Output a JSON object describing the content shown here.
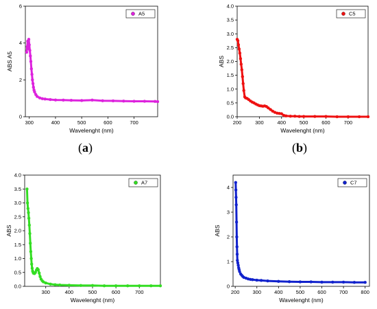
{
  "panel_labels": {
    "a": "(a)",
    "b": "(b)"
  },
  "chart_data": [
    {
      "type": "scatter",
      "panel": "a",
      "xlabel": "Wavelenght (nm)",
      "ylabel": "ABS A5",
      "xlim": [
        285,
        790
      ],
      "ylim": [
        0,
        6
      ],
      "x_ticks": [
        300,
        400,
        500,
        600,
        700
      ],
      "x_tick_labels": [
        "300",
        "400",
        "500",
        "600",
        "700"
      ],
      "y_ticks": [
        0,
        2,
        4,
        6
      ],
      "y_tick_labels": [
        "0",
        "2",
        "4",
        "6"
      ],
      "legend": "top-right",
      "series": [
        {
          "name": "A5",
          "color": "#dd22dd",
          "x": [
            290,
            292,
            294,
            296,
            298,
            300,
            302,
            304,
            306,
            308,
            310,
            312,
            314,
            316,
            318,
            320,
            325,
            330,
            340,
            350,
            360,
            380,
            400,
            430,
            460,
            500,
            540,
            580,
            620,
            660,
            700,
            740,
            780,
            790
          ],
          "y": [
            3.5,
            3.8,
            4.1,
            3.7,
            4.2,
            3.9,
            3.6,
            3.3,
            3.0,
            2.6,
            2.3,
            2.0,
            1.8,
            1.6,
            1.45,
            1.35,
            1.2,
            1.1,
            1.02,
            0.98,
            0.96,
            0.93,
            0.91,
            0.9,
            0.89,
            0.88,
            0.9,
            0.87,
            0.86,
            0.85,
            0.84,
            0.84,
            0.83,
            0.82
          ]
        }
      ]
    },
    {
      "type": "scatter",
      "panel": "b",
      "xlabel": "Wavelenght (nm)",
      "ylabel": "ABS",
      "xlim": [
        200,
        790
      ],
      "ylim": [
        0,
        4
      ],
      "x_ticks": [
        200,
        300,
        400,
        500,
        600,
        700
      ],
      "x_tick_labels": [
        "200",
        "300",
        "400",
        "500",
        "600",
        "700"
      ],
      "y_ticks": [
        0,
        0.5,
        1.0,
        1.5,
        2.0,
        2.5,
        3.0,
        3.5,
        4.0
      ],
      "y_tick_labels": [
        "0.0",
        "0.5",
        "1.0",
        "1.5",
        "2.0",
        "2.5",
        "3.0",
        "3.5",
        "4.0"
      ],
      "legend": "top-right",
      "series": [
        {
          "name": "C5",
          "color": "#ee1111",
          "x": [
            200,
            203,
            206,
            209,
            212,
            215,
            218,
            221,
            224,
            227,
            230,
            234,
            238,
            245,
            252,
            260,
            268,
            276,
            284,
            292,
            300,
            308,
            316,
            324,
            332,
            340,
            350,
            360,
            370,
            380,
            390,
            400,
            410,
            420,
            440,
            460,
            480,
            500,
            550,
            600,
            650,
            700,
            750,
            790
          ],
          "y": [
            2.8,
            2.75,
            2.6,
            2.45,
            2.3,
            2.1,
            1.9,
            1.7,
            1.45,
            1.2,
            0.95,
            0.72,
            0.68,
            0.66,
            0.62,
            0.57,
            0.53,
            0.5,
            0.46,
            0.43,
            0.4,
            0.39,
            0.38,
            0.39,
            0.37,
            0.32,
            0.26,
            0.2,
            0.16,
            0.13,
            0.12,
            0.11,
            0.05,
            0.03,
            0.02,
            0.02,
            0.01,
            0.01,
            0.01,
            0.01,
            0.0,
            0.0,
            0.0,
            0.0
          ]
        }
      ]
    },
    {
      "type": "scatter",
      "panel": "c",
      "xlabel": "Wavelenght (nm)",
      "ylabel": "ABS",
      "xlim": [
        210,
        790
      ],
      "ylim": [
        0,
        4
      ],
      "x_ticks": [
        300,
        400,
        500,
        600,
        700
      ],
      "x_tick_labels": [
        "300",
        "400",
        "500",
        "600",
        "700"
      ],
      "y_ticks": [
        0,
        0.5,
        1.0,
        1.5,
        2.0,
        2.5,
        3.0,
        3.5,
        4.0
      ],
      "y_tick_labels": [
        "0.0",
        "0.5",
        "1.0",
        "1.5",
        "2.0",
        "2.5",
        "3.0",
        "3.5",
        "4.0"
      ],
      "legend": "top-right",
      "series": [
        {
          "name": "A7",
          "color": "#33dd22",
          "x": [
            220,
            222,
            224,
            226,
            228,
            230,
            232,
            234,
            236,
            238,
            240,
            242,
            244,
            246,
            248,
            252,
            256,
            260,
            264,
            268,
            272,
            276,
            280,
            285,
            290,
            300,
            320,
            340,
            360,
            400,
            450,
            500,
            550,
            600,
            650,
            700,
            750,
            790
          ],
          "y": [
            3.5,
            3.0,
            2.8,
            2.65,
            2.45,
            2.2,
            1.9,
            1.55,
            1.25,
            1.0,
            0.8,
            0.65,
            0.55,
            0.5,
            0.47,
            0.46,
            0.5,
            0.58,
            0.64,
            0.6,
            0.48,
            0.35,
            0.26,
            0.2,
            0.16,
            0.12,
            0.08,
            0.06,
            0.05,
            0.04,
            0.03,
            0.03,
            0.02,
            0.02,
            0.02,
            0.02,
            0.02,
            0.02
          ]
        }
      ]
    },
    {
      "type": "scatter",
      "panel": "d",
      "xlabel": "Wavelenght (nm)",
      "ylabel": "ABS",
      "xlim": [
        190,
        820
      ],
      "ylim": [
        0,
        4.5
      ],
      "x_ticks": [
        200,
        300,
        400,
        500,
        600,
        700,
        800
      ],
      "x_tick_labels": [
        "200",
        "300",
        "400",
        "500",
        "600",
        "700",
        "800"
      ],
      "y_ticks": [
        0,
        1,
        2,
        3,
        4
      ],
      "y_tick_labels": [
        "0",
        "1",
        "2",
        "3",
        "4"
      ],
      "legend": "top-right",
      "series": [
        {
          "name": "C7",
          "color": "#1122cc",
          "x": [
            202,
            203,
            204,
            205,
            206,
            207,
            208,
            209,
            210,
            212,
            214,
            216,
            218,
            220,
            225,
            230,
            235,
            240,
            250,
            260,
            270,
            280,
            300,
            320,
            350,
            400,
            450,
            500,
            550,
            600,
            650,
            700,
            750,
            800
          ],
          "y": [
            4.2,
            3.9,
            3.6,
            3.3,
            2.6,
            2.0,
            1.6,
            1.3,
            1.05,
            0.95,
            0.85,
            0.75,
            0.68,
            0.6,
            0.5,
            0.45,
            0.4,
            0.36,
            0.33,
            0.3,
            0.28,
            0.27,
            0.25,
            0.24,
            0.22,
            0.2,
            0.19,
            0.18,
            0.18,
            0.17,
            0.17,
            0.17,
            0.16,
            0.16
          ]
        }
      ]
    }
  ]
}
